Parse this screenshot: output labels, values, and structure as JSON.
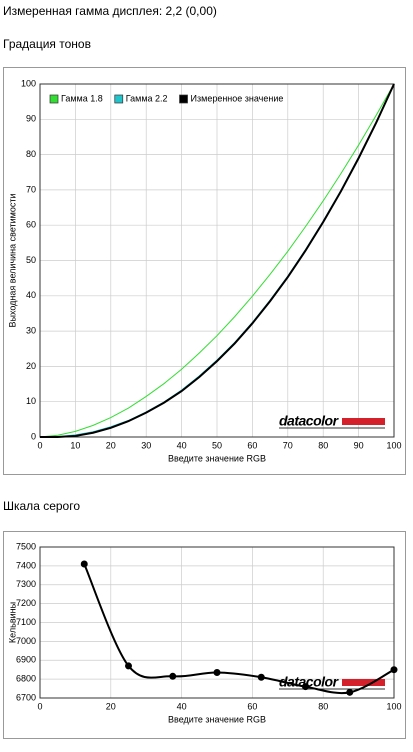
{
  "title": "Измеренная гамма дисплея: 2,2 (0,00)",
  "chart_data": [
    {
      "type": "line",
      "title": "Градация тонов",
      "xlabel": "Введите значение RGB",
      "ylabel": "Выходная величина светимости",
      "x": [
        0,
        5,
        10,
        15,
        20,
        25,
        30,
        35,
        40,
        45,
        50,
        55,
        60,
        65,
        70,
        75,
        80,
        85,
        90,
        95,
        100
      ],
      "series": [
        {
          "name": "Гамма 1.8",
          "color": "#33dd33",
          "values": [
            0,
            0.5,
            1.6,
            3.3,
            5.5,
            8.2,
            11.5,
            15.1,
            19.2,
            23.8,
            28.7,
            34.1,
            39.9,
            46.1,
            52.6,
            59.6,
            66.9,
            74.6,
            82.7,
            91.2,
            100
          ]
        },
        {
          "name": "Гамма 2.2",
          "color": "#22c4cc",
          "values": [
            0,
            0.1,
            0.6,
            1.5,
            2.9,
            4.7,
            7.1,
            9.9,
            13.3,
            17.3,
            21.8,
            26.8,
            32.5,
            38.8,
            45.6,
            53.1,
            61.2,
            69.9,
            79.3,
            89.3,
            100
          ]
        },
        {
          "name": "Измеренное значение",
          "color": "#000000",
          "values": [
            0,
            0,
            0.3,
            1.2,
            2.6,
            4.5,
            6.9,
            9.7,
            13.0,
            17.0,
            21.5,
            26.5,
            32.2,
            38.5,
            45.3,
            52.8,
            60.9,
            69.6,
            79.0,
            89.1,
            100
          ]
        }
      ],
      "xlim": [
        0,
        100
      ],
      "xticks": [
        0,
        10,
        20,
        30,
        40,
        50,
        60,
        70,
        80,
        90,
        100
      ],
      "ylim": [
        0,
        100
      ],
      "yticks": [
        0,
        10,
        20,
        30,
        40,
        50,
        60,
        70,
        80,
        90,
        100
      ],
      "grid": true,
      "legend": "top-left",
      "smooth": false,
      "markers": false,
      "watermark": "datacolor"
    },
    {
      "type": "line",
      "title": "Шкала серого",
      "xlabel": "Введите значение RGB",
      "ylabel": "Кельвины",
      "x": [
        12.5,
        25,
        37.5,
        50,
        62.5,
        75,
        87.5,
        100
      ],
      "series": [
        {
          "color": "#000000",
          "values": [
            7410,
            6870,
            6815,
            6835,
            6810,
            6760,
            6730,
            6850
          ]
        }
      ],
      "xlim": [
        0,
        100
      ],
      "xticks": [
        0,
        20,
        40,
        60,
        80,
        100
      ],
      "ylim": [
        6700,
        7500
      ],
      "yticks": [
        6700,
        6800,
        6900,
        7000,
        7100,
        7200,
        7300,
        7400,
        7500
      ],
      "grid": true,
      "smooth": true,
      "markers": true,
      "watermark": "datacolor"
    }
  ]
}
